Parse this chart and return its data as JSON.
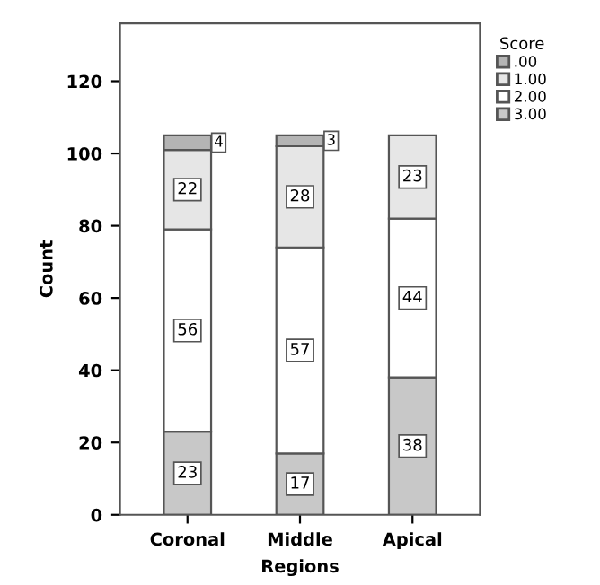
{
  "chart_data": {
    "type": "bar",
    "stacked": true,
    "xlabel": "Regions",
    "ylabel": "Count",
    "legend_title": "Score",
    "legend": "top right",
    "categories": [
      "Coronal",
      "Middle",
      "Apical"
    ],
    "series": [
      {
        "name": "3.00",
        "color": "#c8c8c8",
        "values": [
          23,
          17,
          38
        ]
      },
      {
        "name": "2.00",
        "color": "#ffffff",
        "values": [
          56,
          57,
          44
        ]
      },
      {
        "name": "1.00",
        "color": "#e6e6e6",
        "values": [
          22,
          28,
          23
        ]
      },
      {
        "name": ".00",
        "color": "#b4b4b4",
        "values": [
          4,
          3,
          null
        ]
      }
    ],
    "ylim": [
      0,
      136
    ],
    "yticks": [
      0,
      20,
      40,
      60,
      80,
      100,
      120
    ],
    "data_labels": true,
    "grid": false
  }
}
